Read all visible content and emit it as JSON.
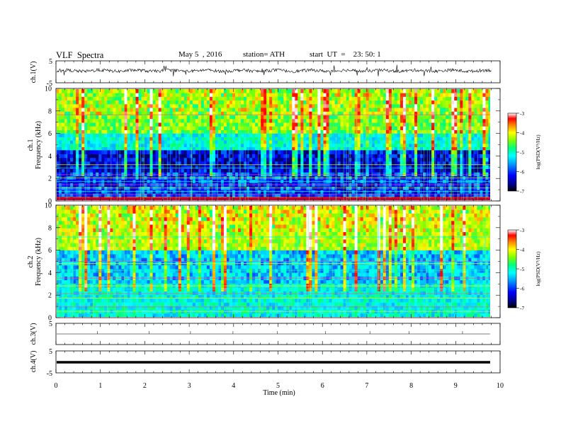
{
  "header": {
    "title": "VLF  Spectra",
    "date": "May 5  , 2016",
    "station": "station= ATH",
    "start": "start  UT  =    23: 50: 1"
  },
  "chart_data": [
    {
      "id": "ch1-waveform",
      "type": "line",
      "ylabel": "ch.1(V)",
      "ylim": [
        -5,
        5
      ],
      "yticks": [
        "5",
        "-5"
      ],
      "series": [
        {
          "values_summary": "noisy signal around +0.5 V, amplitude about ±1 V with occasional spikes"
        }
      ]
    },
    {
      "id": "ch1-spectrogram",
      "type": "heatmap",
      "ylabel_channel": "ch.1",
      "ylabel": "Frequency  (kHz)",
      "ylim": [
        0,
        10
      ],
      "yticks": [
        "0",
        "2",
        "4",
        "6",
        "8",
        "10"
      ],
      "colorbar": {
        "label": "log(PSD(V²/Hz)",
        "range": [
          -7,
          -3
        ],
        "ticks": [
          "-3",
          "-4",
          "-5",
          "-6",
          "-7"
        ]
      },
      "bands": [
        {
          "from_khz": 6,
          "to_khz": 10,
          "level": -4.8
        },
        {
          "from_khz": 4.5,
          "to_khz": 6,
          "level": -5.6
        },
        {
          "from_khz": 2.5,
          "to_khz": 4.5,
          "level": -6.7
        },
        {
          "from_khz": 0.3,
          "to_khz": 2.5,
          "level": -6.4
        },
        {
          "from_khz": 0,
          "to_khz": 0.3,
          "level": -3.6
        }
      ]
    },
    {
      "id": "ch2-spectrogram",
      "type": "heatmap",
      "ylabel_channel": "ch.2",
      "ylabel": "Frequency  (kHz)",
      "ylim": [
        0,
        10
      ],
      "yticks": [
        "0",
        "2",
        "4",
        "6",
        "8",
        "10"
      ],
      "colorbar": {
        "label": "log(PSD(V²/Hz)",
        "range": [
          -7,
          -3
        ],
        "ticks": [
          "-3",
          "-4",
          "-5",
          "-6",
          "-7"
        ]
      },
      "bands": [
        {
          "from_khz": 6,
          "to_khz": 10,
          "level": -4.6
        },
        {
          "from_khz": 3,
          "to_khz": 6,
          "level": -5.9
        },
        {
          "from_khz": 0,
          "to_khz": 3,
          "level": -5.6
        }
      ]
    },
    {
      "id": "ch3-waveform",
      "type": "line",
      "ylabel": "ch.3(V)",
      "ylim": [
        -5,
        5
      ],
      "yticks": [
        "5"
      ],
      "series": [
        {
          "values_summary": "flat near 0 V"
        }
      ]
    },
    {
      "id": "ch4-waveform",
      "type": "line",
      "ylabel": "ch.4(V)",
      "ylim": [
        -5,
        5
      ],
      "yticks": [
        "5",
        "-5"
      ],
      "series": [
        {
          "values_summary": "flat, thick trace near 0 V"
        }
      ]
    }
  ],
  "x_axis": {
    "label": "Time  (min)",
    "xlim": [
      0,
      10
    ],
    "ticks": [
      "0",
      "1",
      "2",
      "3",
      "4",
      "5",
      "6",
      "7",
      "8",
      "9",
      "10"
    ],
    "data_end_min": 9.8
  },
  "colors": {
    "colormap": [
      "#000066",
      "#0000ff",
      "#00a0ff",
      "#00ffff",
      "#00ff80",
      "#80ff00",
      "#ffff00",
      "#ff8000",
      "#ff0000",
      "#ffffff"
    ]
  }
}
